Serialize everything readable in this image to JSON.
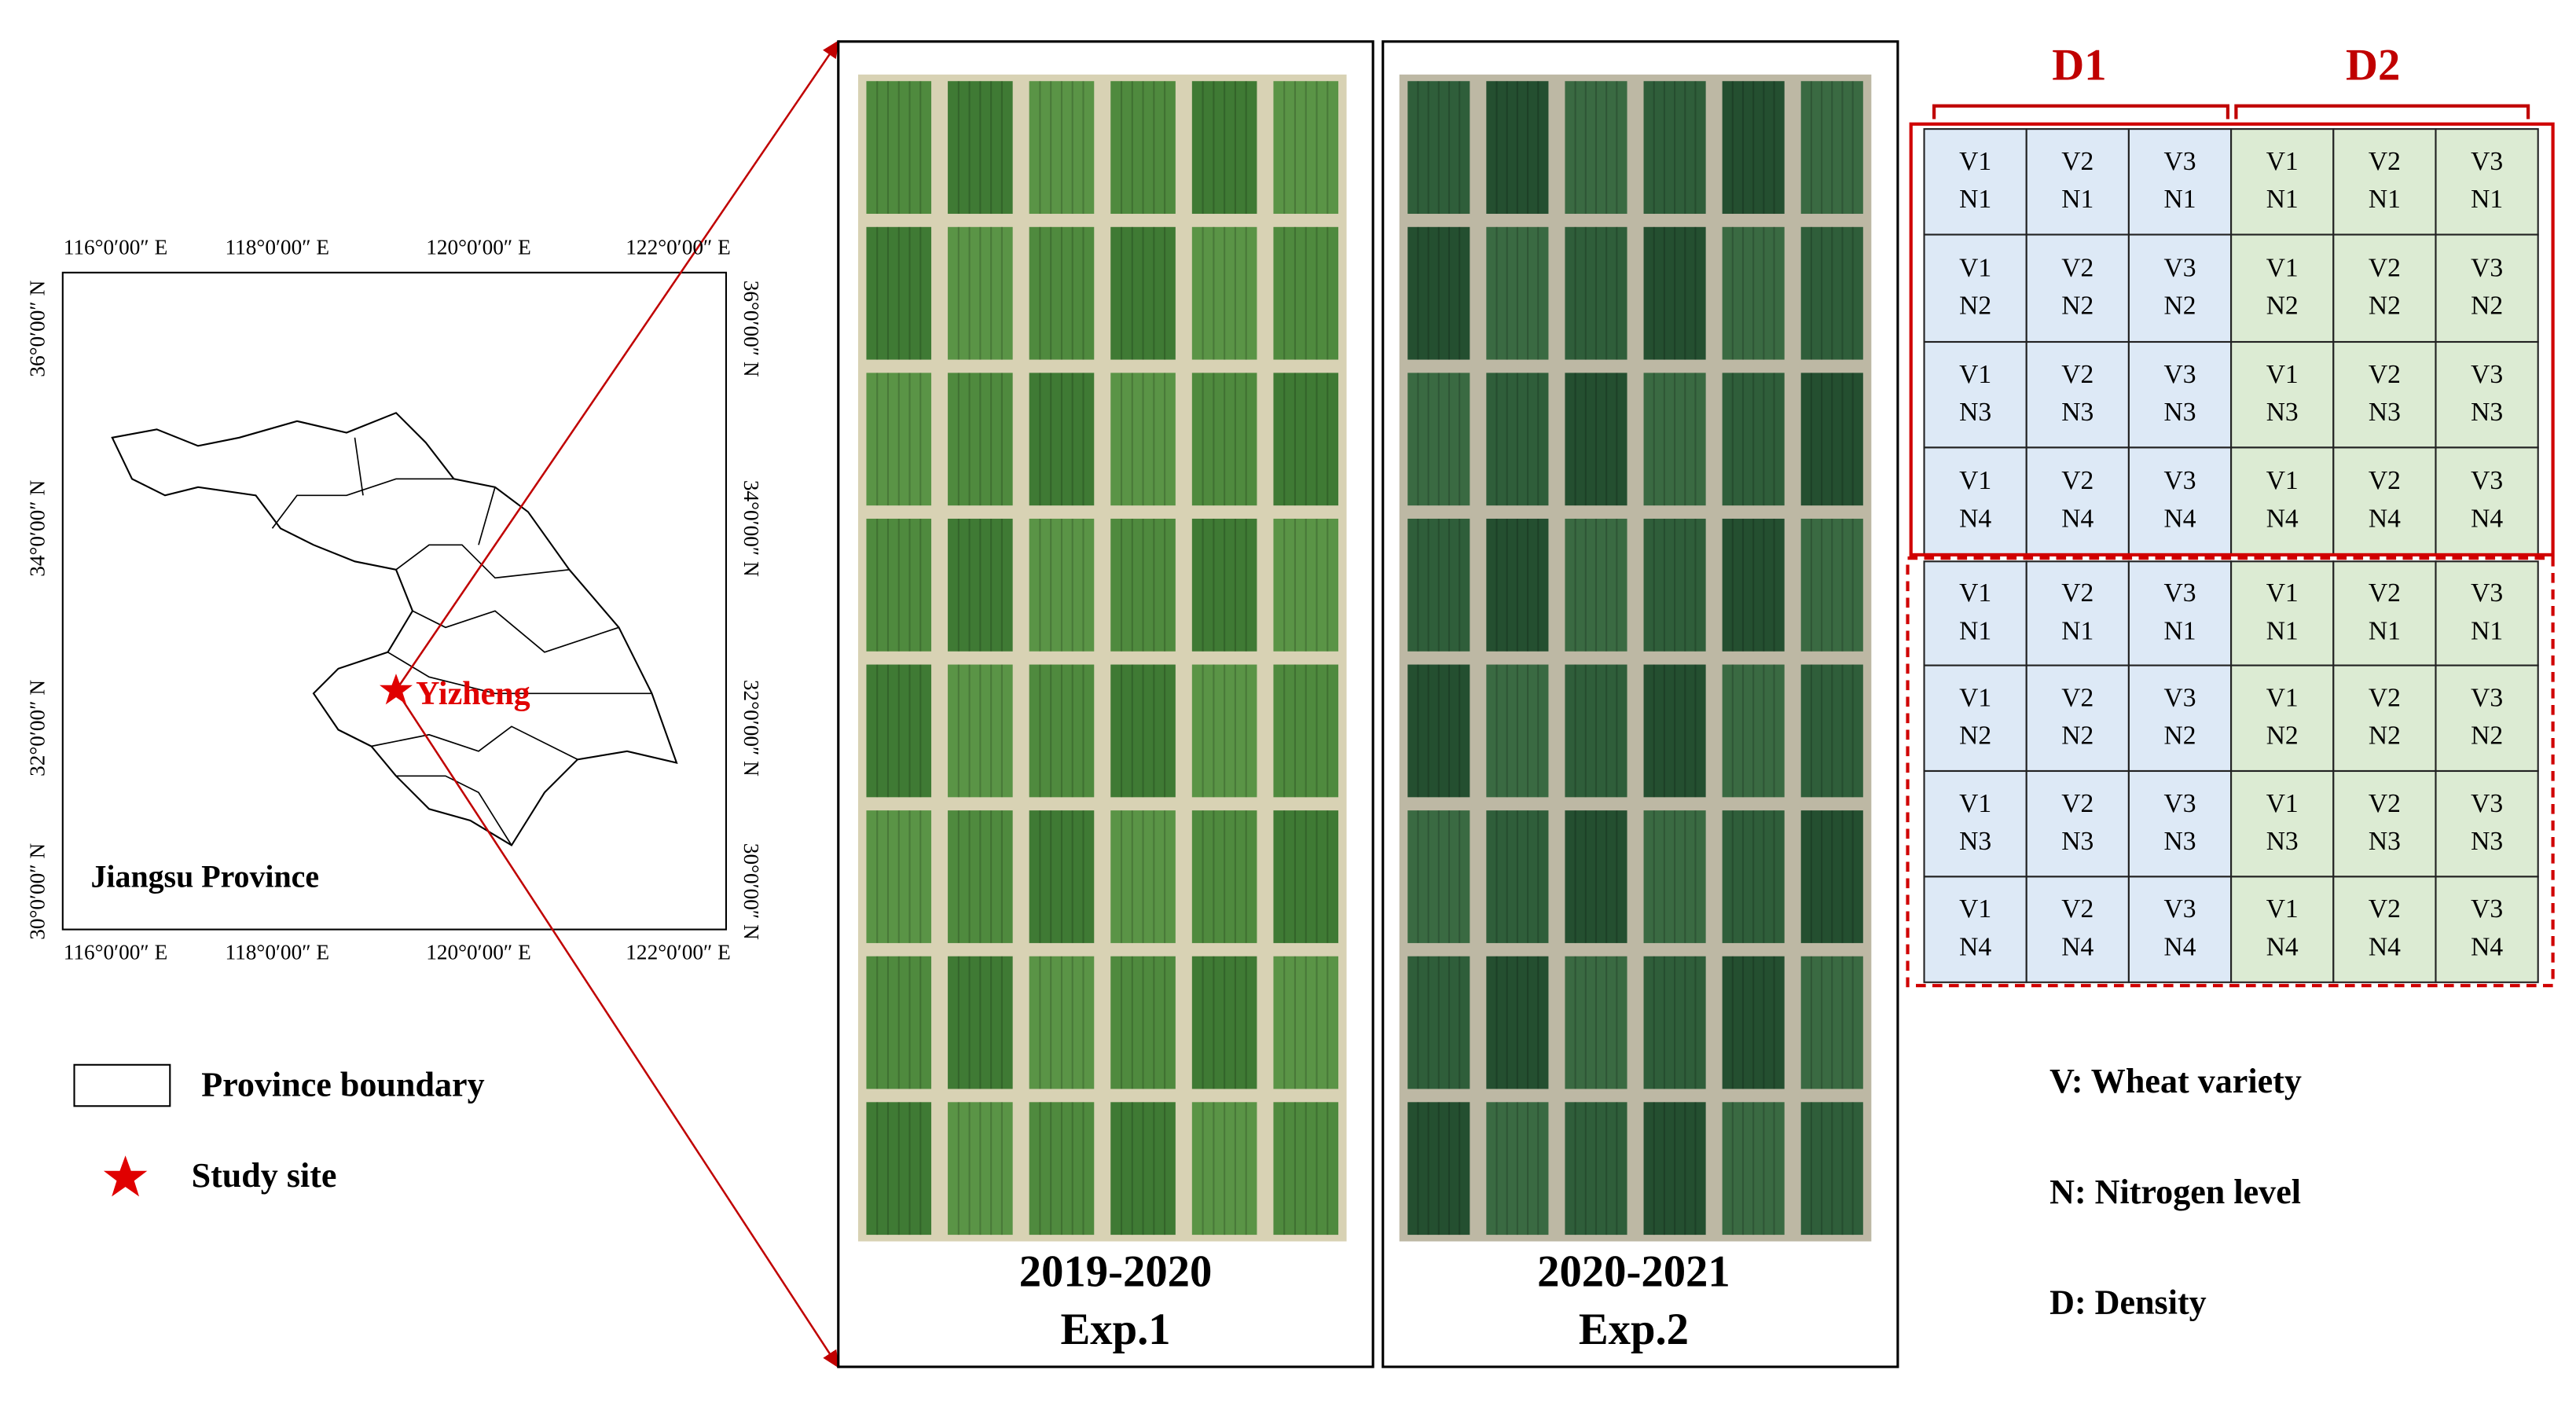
{
  "map": {
    "lon_labels": [
      "116°0′00″ E",
      "118°0′00″ E",
      "120°0′00″ E",
      "122°0′00″ E"
    ],
    "lat_labels": [
      "36°0′00″ N",
      "34°0′00″ N",
      "32°0′00″ N",
      "30°0′00″ N"
    ],
    "site_label": "Yizheng",
    "province_label": "Jiangsu Province"
  },
  "legend": {
    "boundary": "Province boundary",
    "site": "Study site"
  },
  "photos": [
    {
      "year": "2019-2020",
      "exp": "Exp.1"
    },
    {
      "year": "2020-2021",
      "exp": "Exp.2"
    }
  ],
  "grid": {
    "headers": [
      "D1",
      "D2"
    ],
    "rows": [
      [
        [
          "V1",
          "N1"
        ],
        [
          "V2",
          "N1"
        ],
        [
          "V3",
          "N1"
        ],
        [
          "V1",
          "N1"
        ],
        [
          "V2",
          "N1"
        ],
        [
          "V3",
          "N1"
        ]
      ],
      [
        [
          "V1",
          "N2"
        ],
        [
          "V2",
          "N2"
        ],
        [
          "V3",
          "N2"
        ],
        [
          "V1",
          "N2"
        ],
        [
          "V2",
          "N2"
        ],
        [
          "V3",
          "N2"
        ]
      ],
      [
        [
          "V1",
          "N3"
        ],
        [
          "V2",
          "N3"
        ],
        [
          "V3",
          "N3"
        ],
        [
          "V1",
          "N3"
        ],
        [
          "V2",
          "N3"
        ],
        [
          "V3",
          "N3"
        ]
      ],
      [
        [
          "V1",
          "N4"
        ],
        [
          "V2",
          "N4"
        ],
        [
          "V3",
          "N4"
        ],
        [
          "V1",
          "N4"
        ],
        [
          "V2",
          "N4"
        ],
        [
          "V3",
          "N4"
        ]
      ],
      [
        [
          "V1",
          "N1"
        ],
        [
          "V2",
          "N1"
        ],
        [
          "V3",
          "N1"
        ],
        [
          "V1",
          "N1"
        ],
        [
          "V2",
          "N1"
        ],
        [
          "V3",
          "N1"
        ]
      ],
      [
        [
          "V1",
          "N2"
        ],
        [
          "V2",
          "N2"
        ],
        [
          "V3",
          "N2"
        ],
        [
          "V1",
          "N2"
        ],
        [
          "V2",
          "N2"
        ],
        [
          "V3",
          "N2"
        ]
      ],
      [
        [
          "V1",
          "N3"
        ],
        [
          "V2",
          "N3"
        ],
        [
          "V3",
          "N3"
        ],
        [
          "V1",
          "N3"
        ],
        [
          "V2",
          "N3"
        ],
        [
          "V3",
          "N3"
        ]
      ],
      [
        [
          "V1",
          "N4"
        ],
        [
          "V2",
          "N4"
        ],
        [
          "V3",
          "N4"
        ],
        [
          "V1",
          "N4"
        ],
        [
          "V2",
          "N4"
        ],
        [
          "V3",
          "N4"
        ]
      ]
    ]
  },
  "key": [
    "V: Wheat variety",
    "N: Nitrogen level",
    "D: Density"
  ]
}
